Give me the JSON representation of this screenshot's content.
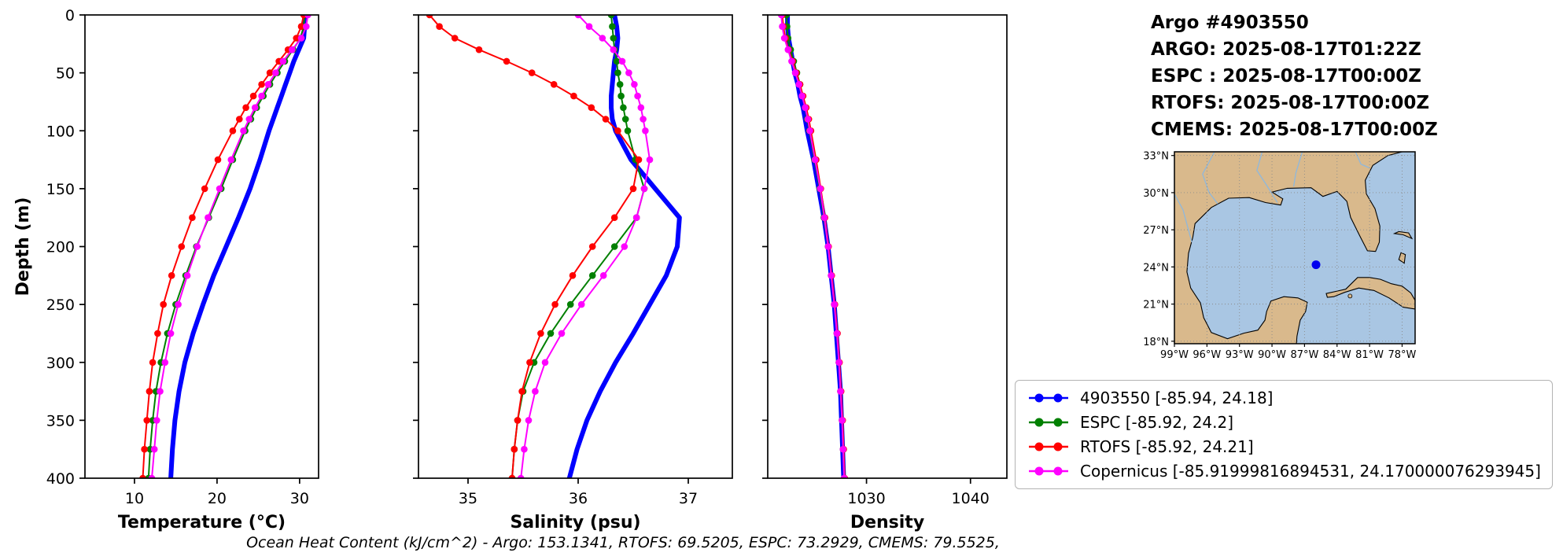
{
  "title_block": {
    "lines": [
      "Argo #4903550",
      "ARGO: 2025-08-17T01:22Z",
      "ESPC : 2025-08-17T00:00Z",
      "RTOFS: 2025-08-17T00:00Z",
      "CMEMS: 2025-08-17T00:00Z"
    ]
  },
  "footer": "Ocean Heat Content (kJ/cm^2) - Argo: 153.1341,  RTOFS: 69.5205,  ESPC: 73.2929,  CMEMS: 79.5525,",
  "ocean_heat_content": {
    "argo": 153.1341,
    "rtofs": 69.5205,
    "espc": 73.2929,
    "cmems": 79.5525
  },
  "legend": {
    "items": [
      {
        "label": "4903550 [-85.94, 24.18]",
        "color": "#0000ff"
      },
      {
        "label": "ESPC [-85.92, 24.2]",
        "color": "#008000"
      },
      {
        "label": "RTOFS [-85.92, 24.21]",
        "color": "#ff0000"
      },
      {
        "label": "Copernicus [-85.91999816894531, 24.170000076293945]",
        "color": "#ff00ff"
      }
    ]
  },
  "map": {
    "extent": {
      "lon_min": -99,
      "lon_max": -76.8,
      "lat_min": 17.8,
      "lat_max": 33.3
    },
    "lat_ticks": [
      33,
      30,
      27,
      24,
      21,
      18
    ],
    "lat_labels": [
      "33°N",
      "30°N",
      "27°N",
      "24°N",
      "21°N",
      "18°N"
    ],
    "lon_ticks": [
      -99,
      -96,
      -93,
      -90,
      -87,
      -84,
      -81,
      -78
    ],
    "lon_labels": [
      "99°W",
      "96°W",
      "93°W",
      "90°W",
      "87°W",
      "84°W",
      "81°W",
      "78°W"
    ],
    "marker": {
      "lon": -85.94,
      "lat": 24.18,
      "color": "#0000ee"
    },
    "colors": {
      "land": "#d9b98c",
      "ocean": "#a9c6e3",
      "river": "#8fb8dc",
      "grid": "#8a8a8a"
    }
  },
  "chart_data": [
    {
      "type": "line",
      "xlabel": "Temperature (°C)",
      "ylabel": "Depth (m)",
      "xlim": [
        4,
        32.3
      ],
      "ylim": [
        400,
        0
      ],
      "xticks": [
        10,
        20,
        30
      ],
      "yticks": [
        0,
        50,
        100,
        150,
        200,
        250,
        300,
        350,
        400
      ],
      "grid": false,
      "depths": [
        0,
        10,
        20,
        30,
        40,
        50,
        60,
        70,
        80,
        90,
        100,
        125,
        150,
        175,
        200,
        225,
        250,
        275,
        300,
        325,
        350,
        375,
        400
      ],
      "series": [
        {
          "name": "4903550",
          "color": "#0000ff",
          "linewidth": 6,
          "marker": false,
          "values": [
            30.6,
            30.6,
            30.5,
            29.9,
            29.3,
            28.8,
            28.3,
            27.8,
            27.3,
            26.8,
            26.3,
            25.2,
            24.0,
            22.6,
            21.1,
            19.6,
            18.3,
            17.1,
            16.1,
            15.4,
            14.9,
            14.6,
            14.4
          ]
        },
        {
          "name": "ESPC",
          "color": "#008000",
          "linewidth": 2,
          "marker": true,
          "values": [
            30.6,
            30.5,
            30.1,
            29.2,
            28.2,
            27.3,
            26.4,
            25.6,
            24.8,
            24.1,
            23.4,
            21.9,
            20.5,
            19.0,
            17.5,
            16.2,
            15.0,
            14.0,
            13.2,
            12.6,
            12.2,
            11.9,
            11.7
          ]
        },
        {
          "name": "RTOFS",
          "color": "#ff0000",
          "linewidth": 2,
          "marker": true,
          "values": [
            30.5,
            30.2,
            29.6,
            28.6,
            27.5,
            26.4,
            25.4,
            24.4,
            23.5,
            22.7,
            21.9,
            20.1,
            18.5,
            17.0,
            15.7,
            14.5,
            13.5,
            12.8,
            12.2,
            11.8,
            11.5,
            11.2,
            11.0
          ]
        },
        {
          "name": "Copernicus",
          "color": "#ff00ff",
          "linewidth": 2,
          "marker": true,
          "values": [
            31.0,
            30.8,
            30.2,
            29.1,
            28.0,
            27.1,
            26.2,
            25.4,
            24.6,
            23.9,
            23.2,
            21.7,
            20.3,
            18.9,
            17.6,
            16.4,
            15.3,
            14.4,
            13.7,
            13.1,
            12.7,
            12.4,
            12.1
          ]
        }
      ]
    },
    {
      "type": "line",
      "xlabel": "Salinity (psu)",
      "ylabel": "",
      "xlim": [
        34.55,
        37.4
      ],
      "ylim": [
        400,
        0
      ],
      "xticks": [
        35,
        36,
        37
      ],
      "yticks": [
        0,
        50,
        100,
        150,
        200,
        250,
        300,
        350,
        400
      ],
      "grid": false,
      "depths": [
        0,
        10,
        20,
        30,
        40,
        50,
        60,
        70,
        80,
        90,
        100,
        125,
        150,
        175,
        200,
        225,
        250,
        275,
        300,
        325,
        350,
        375,
        400
      ],
      "series": [
        {
          "name": "4903550",
          "color": "#0000ff",
          "linewidth": 6,
          "marker": false,
          "values": [
            36.33,
            36.35,
            36.36,
            36.35,
            36.33,
            36.32,
            36.31,
            36.3,
            36.3,
            36.31,
            36.34,
            36.48,
            36.7,
            36.92,
            36.9,
            36.8,
            36.65,
            36.5,
            36.34,
            36.2,
            36.08,
            35.99,
            35.92
          ]
        },
        {
          "name": "ESPC",
          "color": "#008000",
          "linewidth": 2,
          "marker": true,
          "values": [
            36.3,
            36.31,
            36.32,
            36.33,
            36.35,
            36.36,
            36.38,
            36.39,
            36.41,
            36.43,
            36.45,
            36.52,
            36.6,
            36.53,
            36.33,
            36.13,
            35.93,
            35.75,
            35.6,
            35.5,
            35.45,
            35.42,
            35.4
          ]
        },
        {
          "name": "RTOFS",
          "color": "#ff0000",
          "linewidth": 2,
          "marker": true,
          "values": [
            34.65,
            34.74,
            34.88,
            35.1,
            35.35,
            35.58,
            35.78,
            35.96,
            36.12,
            36.25,
            36.36,
            36.55,
            36.5,
            36.33,
            36.13,
            35.95,
            35.79,
            35.66,
            35.56,
            35.49,
            35.45,
            35.42,
            35.4
          ]
        },
        {
          "name": "Copernicus",
          "color": "#ff00ff",
          "linewidth": 2,
          "marker": true,
          "values": [
            36.0,
            36.1,
            36.22,
            36.32,
            36.4,
            36.46,
            36.51,
            36.54,
            36.57,
            36.59,
            36.61,
            36.65,
            36.6,
            36.53,
            36.42,
            36.23,
            36.03,
            35.85,
            35.7,
            35.61,
            35.55,
            35.51,
            35.48
          ]
        }
      ]
    },
    {
      "type": "line",
      "xlabel": "Density",
      "ylabel": "",
      "xlim": [
        1020.5,
        1043.5
      ],
      "ylim": [
        400,
        0
      ],
      "xticks": [
        1030,
        1040
      ],
      "yticks": [
        0,
        50,
        100,
        150,
        200,
        250,
        300,
        350,
        400
      ],
      "grid": false,
      "depths": [
        0,
        10,
        20,
        30,
        40,
        50,
        60,
        70,
        80,
        90,
        100,
        125,
        150,
        175,
        200,
        225,
        250,
        275,
        300,
        325,
        350,
        375,
        400
      ],
      "series": [
        {
          "name": "4903550",
          "color": "#0000ff",
          "linewidth": 6,
          "marker": false,
          "values": [
            1022.4,
            1022.4,
            1022.5,
            1022.7,
            1022.9,
            1023.1,
            1023.4,
            1023.6,
            1023.9,
            1024.1,
            1024.3,
            1024.9,
            1025.4,
            1025.9,
            1026.3,
            1026.6,
            1026.9,
            1027.1,
            1027.3,
            1027.5,
            1027.6,
            1027.7,
            1027.8
          ]
        },
        {
          "name": "ESPC",
          "color": "#008000",
          "linewidth": 2,
          "marker": true,
          "values": [
            1022.3,
            1022.35,
            1022.45,
            1022.7,
            1023.0,
            1023.3,
            1023.6,
            1023.85,
            1024.1,
            1024.3,
            1024.5,
            1025.0,
            1025.5,
            1025.9,
            1026.3,
            1026.6,
            1026.9,
            1027.15,
            1027.35,
            1027.5,
            1027.65,
            1027.75,
            1027.85
          ]
        },
        {
          "name": "RTOFS",
          "color": "#ff0000",
          "linewidth": 2,
          "marker": true,
          "values": [
            1021.9,
            1022.0,
            1022.2,
            1022.5,
            1022.9,
            1023.25,
            1023.6,
            1023.9,
            1024.2,
            1024.45,
            1024.65,
            1025.15,
            1025.6,
            1026.0,
            1026.35,
            1026.65,
            1026.95,
            1027.2,
            1027.4,
            1027.55,
            1027.7,
            1027.8,
            1027.9
          ]
        },
        {
          "name": "Copernicus",
          "color": "#ff00ff",
          "linewidth": 2,
          "marker": true,
          "values": [
            1021.8,
            1021.9,
            1022.1,
            1022.45,
            1022.8,
            1023.15,
            1023.5,
            1023.8,
            1024.1,
            1024.35,
            1024.55,
            1025.05,
            1025.55,
            1025.95,
            1026.3,
            1026.6,
            1026.9,
            1027.15,
            1027.35,
            1027.5,
            1027.65,
            1027.75,
            1027.85
          ]
        }
      ]
    }
  ]
}
